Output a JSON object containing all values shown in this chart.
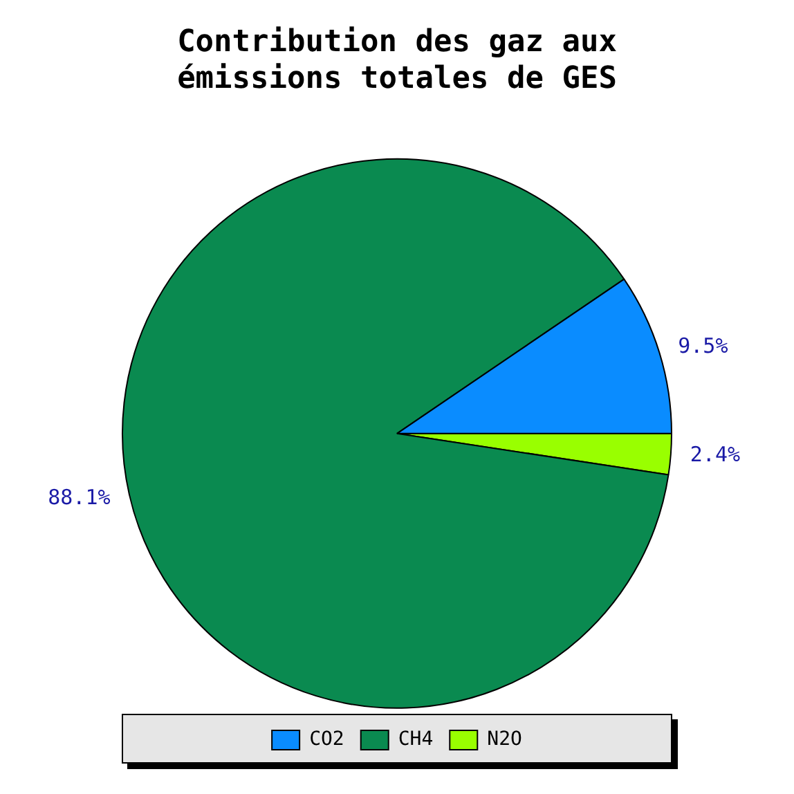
{
  "chart_data": {
    "type": "pie",
    "title": [
      "Contribution des gaz aux",
      "émissions totales de GES"
    ],
    "categories": [
      "CO2",
      "CH4",
      "N2O"
    ],
    "values": [
      9.5,
      88.1,
      2.4
    ],
    "colors": [
      "#0a8cff",
      "#0a8a50",
      "#99ff00"
    ],
    "value_labels": [
      "9.5%",
      "88.1%",
      "2.4%"
    ],
    "legend": "bottom"
  }
}
